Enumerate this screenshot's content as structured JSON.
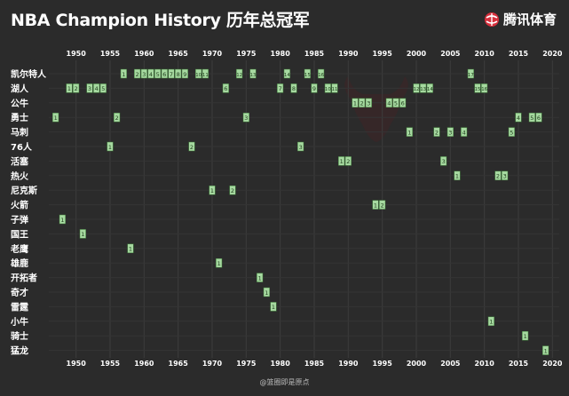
{
  "header": {
    "title": "NBA Champion History 历年总冠军",
    "logo_text": "腾讯体育",
    "logo_icon": "tencent-sports-logo-icon"
  },
  "watermark": "@篮圈即是原点",
  "colors": {
    "background": "#2b2b2b",
    "box_fill": "#a6d9a0",
    "box_stroke": "#3f7a3a",
    "label": "#ffffff",
    "logo_red": "#d6303d"
  },
  "chart_data": {
    "type": "timeline",
    "x_ticks": [
      1950,
      1955,
      1960,
      1965,
      1970,
      1975,
      1980,
      1985,
      1990,
      1995,
      2000,
      2005,
      2010,
      2015,
      2020
    ],
    "xlim": [
      1946,
      2021
    ],
    "grid": true,
    "teams": [
      {
        "name": "凯尔特人",
        "years": [
          1957,
          1959,
          1960,
          1961,
          1962,
          1963,
          1964,
          1965,
          1966,
          1968,
          1969,
          1974,
          1976,
          1981,
          1984,
          1986,
          2008
        ],
        "labels": [
          "1",
          "2",
          "3",
          "4",
          "5",
          "6",
          "7",
          "8",
          "9",
          "10",
          "11",
          "12",
          "13",
          "14",
          "15",
          "16",
          "17"
        ]
      },
      {
        "name": "湖人",
        "years": [
          1949,
          1950,
          1952,
          1953,
          1954,
          1972,
          1980,
          1982,
          1985,
          1987,
          1988,
          2000,
          2001,
          2002,
          2009,
          2010
        ],
        "labels": [
          "1",
          "2",
          "3",
          "4",
          "5",
          "6",
          "7",
          "8",
          "9",
          "10",
          "11",
          "12",
          "13",
          "14",
          "15",
          "16"
        ]
      },
      {
        "name": "公牛",
        "years": [
          1991,
          1992,
          1993,
          1996,
          1997,
          1998
        ],
        "labels": [
          "1",
          "2",
          "3",
          "4",
          "5",
          "6"
        ]
      },
      {
        "name": "勇士",
        "years": [
          1947,
          1956,
          1975,
          2015,
          2017,
          2018
        ],
        "labels": [
          "1",
          "2",
          "3",
          "4",
          "5",
          "6"
        ]
      },
      {
        "name": "马刺",
        "years": [
          1999,
          2003,
          2005,
          2007,
          2014
        ],
        "labels": [
          "1",
          "2",
          "3",
          "4",
          "5"
        ]
      },
      {
        "name": "76人",
        "years": [
          1955,
          1967,
          1983
        ],
        "labels": [
          "1",
          "2",
          "3"
        ]
      },
      {
        "name": "活塞",
        "years": [
          1989,
          1990,
          2004
        ],
        "labels": [
          "1",
          "2",
          "3"
        ]
      },
      {
        "name": "热火",
        "years": [
          2006,
          2012,
          2013
        ],
        "labels": [
          "1",
          "2",
          "3"
        ]
      },
      {
        "name": "尼克斯",
        "years": [
          1970,
          1973
        ],
        "labels": [
          "1",
          "2"
        ]
      },
      {
        "name": "火箭",
        "years": [
          1994,
          1995
        ],
        "labels": [
          "1",
          "2"
        ]
      },
      {
        "name": "子弹",
        "years": [
          1948
        ],
        "labels": [
          "1"
        ]
      },
      {
        "name": "国王",
        "years": [
          1951
        ],
        "labels": [
          "1"
        ]
      },
      {
        "name": "老鹰",
        "years": [
          1958
        ],
        "labels": [
          "1"
        ]
      },
      {
        "name": "雄鹿",
        "years": [
          1971
        ],
        "labels": [
          "1"
        ]
      },
      {
        "name": "开拓者",
        "years": [
          1977
        ],
        "labels": [
          "1"
        ]
      },
      {
        "name": "奇才",
        "years": [
          1978
        ],
        "labels": [
          "1"
        ]
      },
      {
        "name": "雷霆",
        "years": [
          1979
        ],
        "labels": [
          "1"
        ]
      },
      {
        "name": "小牛",
        "years": [
          2011
        ],
        "labels": [
          "1"
        ]
      },
      {
        "name": "骑士",
        "years": [
          2016
        ],
        "labels": [
          "1"
        ]
      },
      {
        "name": "猛龙",
        "years": [
          2019
        ],
        "labels": [
          "1"
        ]
      }
    ]
  }
}
